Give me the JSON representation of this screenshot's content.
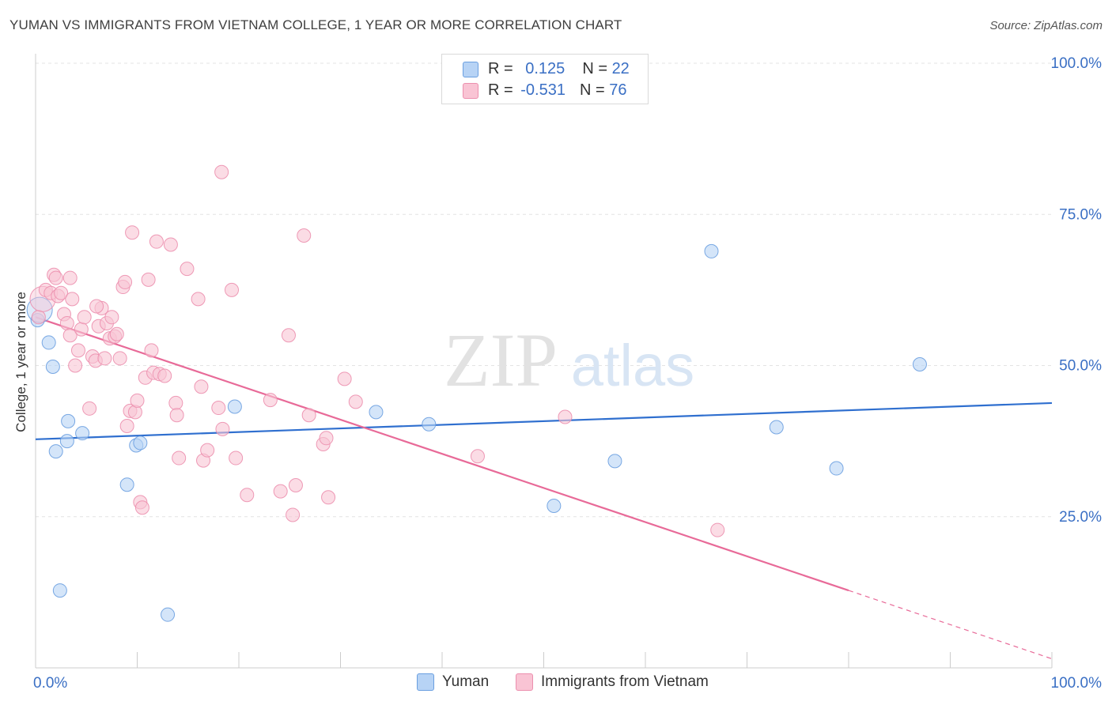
{
  "header": {
    "title": "YUMAN VS IMMIGRANTS FROM VIETNAM COLLEGE, 1 YEAR OR MORE CORRELATION CHART",
    "source": "Source: ZipAtlas.com"
  },
  "watermark": {
    "zip": "ZIP",
    "atlas": "atlas"
  },
  "colors": {
    "blue_fill": "#b7d3f5",
    "blue_stroke": "#6a9fe0",
    "blue_line": "#2f6fcf",
    "pink_fill": "#f9c4d4",
    "pink_stroke": "#ec8fae",
    "pink_line": "#e86a98",
    "axis_text": "#3a6fc4"
  },
  "legend_top": {
    "rows": [
      {
        "r_label": "R = ",
        "r_value": "0.125",
        "n_label": "N = ",
        "n_value": "22"
      },
      {
        "r_label": "R = ",
        "r_value": "-0.531",
        "n_label": "N = ",
        "n_value": "76"
      }
    ]
  },
  "chart_data": {
    "type": "scatter",
    "title": "YUMAN VS IMMIGRANTS FROM VIETNAM COLLEGE, 1 YEAR OR MORE CORRELATION CHART",
    "xlabel": "",
    "ylabel": "College, 1 year or more",
    "xlim": [
      0,
      100
    ],
    "ylim": [
      0,
      100
    ],
    "x_tick_labels": [
      "0.0%",
      "100.0%"
    ],
    "y_tick_labels": [
      "100.0%",
      "75.0%",
      "50.0%",
      "25.0%"
    ],
    "y_ticks": [
      100,
      75,
      50,
      25
    ],
    "grid": true,
    "series": [
      {
        "name": "Yuman",
        "color": "blue",
        "r": 0.125,
        "n": 22,
        "points": [
          [
            0.2,
            57.5
          ],
          [
            1.3,
            53.8
          ],
          [
            1.7,
            49.8
          ],
          [
            2.0,
            35.8
          ],
          [
            3.1,
            37.5
          ],
          [
            3.2,
            40.8
          ],
          [
            4.6,
            38.8
          ],
          [
            2.4,
            12.8
          ],
          [
            9.0,
            30.3
          ],
          [
            9.9,
            36.8
          ],
          [
            10.3,
            37.2
          ],
          [
            13.0,
            8.8
          ],
          [
            19.6,
            43.2
          ],
          [
            33.5,
            42.3
          ],
          [
            38.7,
            40.3
          ],
          [
            51.0,
            26.8
          ],
          [
            57.0,
            34.2
          ],
          [
            66.5,
            68.9
          ],
          [
            72.9,
            39.8
          ],
          [
            78.8,
            33.0
          ],
          [
            87.0,
            50.2
          ],
          [
            0.4,
            59.2
          ]
        ],
        "trend": {
          "x": [
            0,
            100
          ],
          "y": [
            37.8,
            43.8
          ],
          "solid_until": 100
        }
      },
      {
        "name": "Immigrants from Vietnam",
        "color": "pink",
        "r": -0.531,
        "n": 76,
        "points": [
          [
            0.3,
            58.0
          ],
          [
            0.7,
            61.0
          ],
          [
            1.0,
            62.5
          ],
          [
            1.5,
            62.0
          ],
          [
            1.8,
            65.0
          ],
          [
            2.0,
            64.5
          ],
          [
            2.2,
            61.5
          ],
          [
            2.5,
            62.0
          ],
          [
            2.8,
            58.5
          ],
          [
            3.1,
            57.0
          ],
          [
            3.4,
            55.0
          ],
          [
            3.6,
            61.0
          ],
          [
            3.9,
            50.0
          ],
          [
            4.2,
            52.5
          ],
          [
            4.5,
            56.0
          ],
          [
            4.8,
            58.0
          ],
          [
            5.3,
            42.9
          ],
          [
            5.6,
            51.5
          ],
          [
            5.9,
            50.8
          ],
          [
            6.2,
            56.5
          ],
          [
            6.5,
            59.5
          ],
          [
            6.8,
            51.2
          ],
          [
            7.0,
            57.0
          ],
          [
            7.3,
            54.5
          ],
          [
            7.5,
            58.0
          ],
          [
            7.8,
            54.8
          ],
          [
            8.0,
            55.2
          ],
          [
            8.3,
            51.2
          ],
          [
            8.6,
            63.0
          ],
          [
            8.8,
            63.8
          ],
          [
            9.0,
            40.0
          ],
          [
            9.3,
            42.5
          ],
          [
            9.5,
            72.0
          ],
          [
            9.8,
            42.3
          ],
          [
            10.0,
            44.2
          ],
          [
            10.3,
            27.4
          ],
          [
            10.5,
            26.5
          ],
          [
            10.8,
            48.0
          ],
          [
            11.1,
            64.2
          ],
          [
            11.4,
            52.5
          ],
          [
            11.6,
            48.8
          ],
          [
            11.9,
            70.5
          ],
          [
            12.2,
            48.6
          ],
          [
            12.7,
            48.3
          ],
          [
            13.3,
            70.0
          ],
          [
            13.8,
            43.8
          ],
          [
            13.9,
            41.8
          ],
          [
            14.1,
            34.7
          ],
          [
            14.9,
            66.0
          ],
          [
            16.3,
            46.5
          ],
          [
            16.5,
            34.3
          ],
          [
            16.9,
            36.0
          ],
          [
            18.0,
            43.0
          ],
          [
            18.3,
            82.0
          ],
          [
            18.4,
            39.5
          ],
          [
            19.3,
            62.5
          ],
          [
            19.7,
            34.7
          ],
          [
            20.8,
            28.6
          ],
          [
            23.1,
            44.3
          ],
          [
            24.1,
            29.2
          ],
          [
            24.9,
            55.0
          ],
          [
            25.3,
            25.3
          ],
          [
            25.6,
            30.2
          ],
          [
            26.4,
            71.5
          ],
          [
            26.9,
            41.8
          ],
          [
            28.3,
            37.0
          ],
          [
            28.6,
            38.0
          ],
          [
            28.8,
            28.2
          ],
          [
            30.4,
            47.8
          ],
          [
            31.5,
            44.0
          ],
          [
            43.5,
            35.0
          ],
          [
            52.1,
            41.5
          ],
          [
            67.1,
            22.8
          ],
          [
            3.4,
            64.5
          ],
          [
            6.0,
            59.8
          ],
          [
            16.0,
            61.0
          ]
        ],
        "trend": {
          "x": [
            0,
            100
          ],
          "y": [
            58.0,
            1.5
          ],
          "solid_until": 80
        }
      }
    ]
  },
  "legend_bottom": {
    "items": [
      {
        "label": "Yuman"
      },
      {
        "label": "Immigrants from Vietnam"
      }
    ]
  }
}
